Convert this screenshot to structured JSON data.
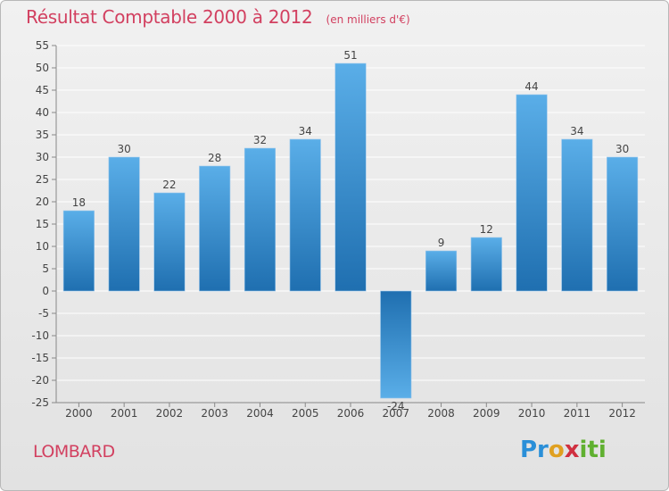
{
  "header": {
    "title": "Résultat Comptable 2000 à 2012",
    "unit": "(en milliers d'€)"
  },
  "footer": {
    "commune": "LOMBARD",
    "logo_parts": [
      "Pr",
      "o",
      "x",
      "iti"
    ]
  },
  "colors": {
    "title": "#d24060",
    "bar_light": "#5aaee8",
    "bar_dark": "#1f6fb0",
    "grid": "#ffffff"
  },
  "chart_data": {
    "type": "bar",
    "title": "Résultat Comptable 2000 à 2012",
    "xlabel": "",
    "ylabel": "",
    "ylim": [
      -25,
      55
    ],
    "ytick_step": 5,
    "grid": true,
    "categories": [
      "2000",
      "2001",
      "2002",
      "2003",
      "2004",
      "2005",
      "2006",
      "2007",
      "2008",
      "2009",
      "2010",
      "2011",
      "2012"
    ],
    "values": [
      18,
      30,
      22,
      28,
      32,
      34,
      51,
      -24,
      9,
      12,
      44,
      34,
      30
    ]
  }
}
